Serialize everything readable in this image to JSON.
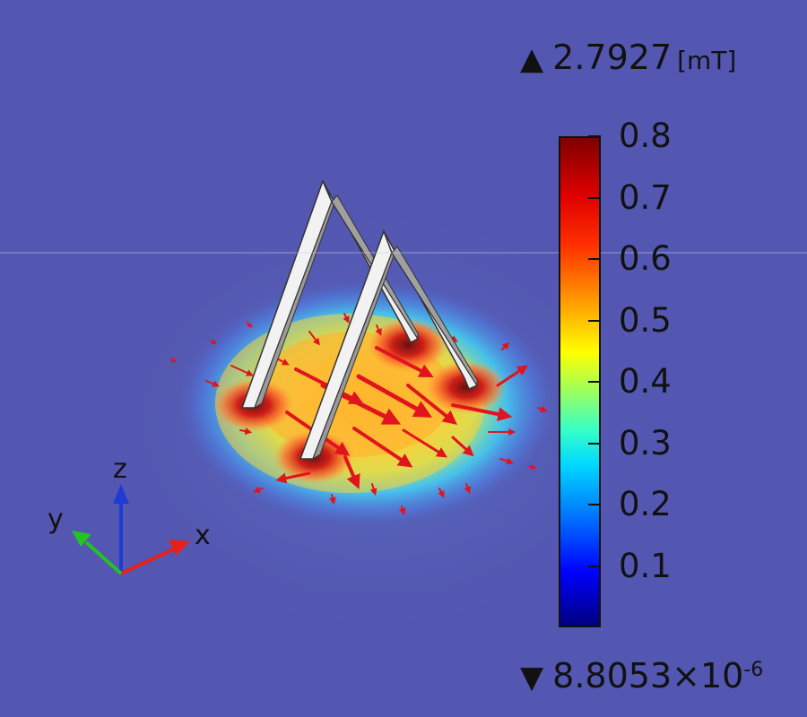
{
  "legend": {
    "max_symbol": "▲",
    "max_value": "2.7927",
    "unit": "[mT]",
    "min_symbol": "▼",
    "min_value_mantissa": "8.8053×10",
    "min_value_exponent": "-6"
  },
  "colorbar": {
    "range": [
      0,
      0.8
    ],
    "tick_labels": [
      "0.8",
      "0.7",
      "0.6",
      "0.5",
      "0.4",
      "0.3",
      "0.2",
      "0.1"
    ],
    "colors": [
      "#00007f",
      "#0000ff",
      "#00d8ff",
      "#9bff60",
      "#ffff00",
      "#ffa000",
      "#ff3000",
      "#7f0000"
    ]
  },
  "axes_triad": {
    "x_label": "x",
    "y_label": "y",
    "z_label": "z",
    "colors": {
      "x": "#e8201c",
      "y": "#22c322",
      "z": "#1f3bd6"
    }
  },
  "scene": {
    "background_color": "#5457b1",
    "wire_color": "#d9d9d9",
    "arrow_color": "#e1141e"
  }
}
